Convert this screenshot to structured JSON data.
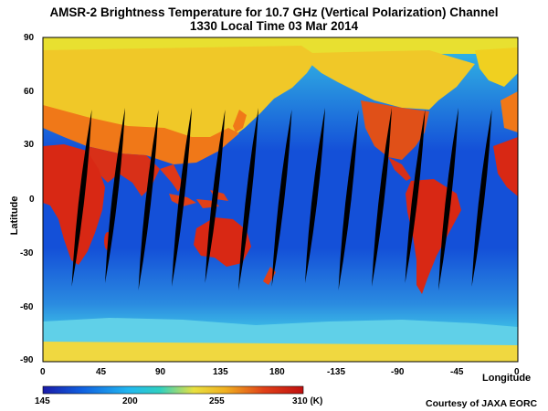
{
  "title": "AMSR-2 Brightness Temperature for 10.7 GHz (Vertical Polarization) Channel",
  "subtitle": "1330 Local Time  03 Mar 2014",
  "axes": {
    "ylabel": "Latitude",
    "xlabel": "Longitude",
    "lat_ticks": [
      "90",
      "60",
      "30",
      "0",
      "-30",
      "-60",
      "-90"
    ],
    "lon_ticks": [
      "0",
      "45",
      "90",
      "135",
      "180",
      "-135",
      "-90",
      "-45",
      "0"
    ]
  },
  "colorbar": {
    "labels": [
      "145",
      "200",
      "255",
      "310 (K)"
    ],
    "range": [
      145,
      310
    ],
    "colors": [
      "#1a1aa8",
      "#1060e0",
      "#22b8f0",
      "#30d0c0",
      "#e8e040",
      "#f0b020",
      "#e04018",
      "#c01010"
    ]
  },
  "credit": "Courtesy of JAXA EORC",
  "colors": {
    "ocean": "#1450d8",
    "land_hot": "#d82814",
    "land_warm": "#f07818",
    "snow": "#f0d820",
    "sea_ice": "#8ad8f0",
    "swath_gap": "#000000"
  }
}
